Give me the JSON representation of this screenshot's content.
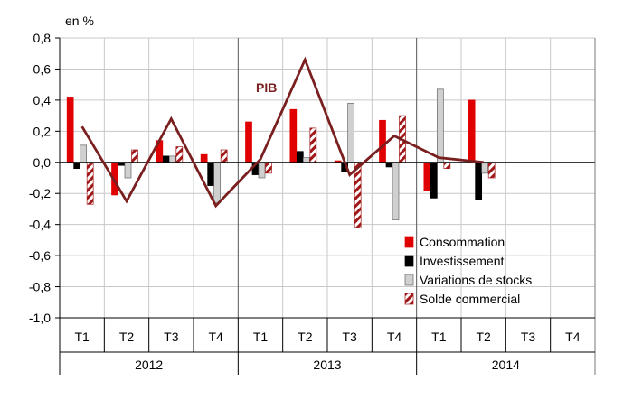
{
  "chart_data": {
    "type": "bar",
    "ylabel": "en %",
    "ylim": [
      -1.0,
      0.8
    ],
    "yticks": [
      "0,8",
      "0,6",
      "0,4",
      "0,2",
      "0,0",
      "-0,2",
      "-0,4",
      "-0,6",
      "-0,8",
      "-1,0"
    ],
    "grid": true,
    "legend_position": "bottom-right",
    "quarters": [
      "T1",
      "T2",
      "T3",
      "T4",
      "T1",
      "T2",
      "T3",
      "T4",
      "T1",
      "T2",
      "T3",
      "T4"
    ],
    "years": [
      "2012",
      "2013",
      "2014"
    ],
    "series": [
      {
        "name": "Consommation",
        "color": "#e00000",
        "values": [
          0.42,
          -0.21,
          0.14,
          0.05,
          0.26,
          0.34,
          0.01,
          0.27,
          -0.18,
          0.4,
          null,
          null
        ]
      },
      {
        "name": "Investissement",
        "color": "#000000",
        "values": [
          -0.04,
          -0.02,
          0.04,
          -0.15,
          -0.08,
          0.07,
          -0.06,
          -0.03,
          -0.23,
          -0.24,
          null,
          null
        ]
      },
      {
        "name": "Variations de stocks",
        "color": "#d0d0d0",
        "values": [
          0.11,
          -0.1,
          0.04,
          -0.26,
          -0.1,
          0.03,
          0.38,
          -0.37,
          0.47,
          -0.07,
          null,
          null
        ]
      },
      {
        "name": "Solde commercial",
        "color": "#a01818",
        "pattern": "hatch",
        "values": [
          -0.27,
          0.08,
          0.1,
          0.08,
          -0.07,
          0.22,
          -0.42,
          0.3,
          -0.04,
          -0.1,
          null,
          null
        ]
      }
    ],
    "line": {
      "name": "PIB",
      "label": "PIB",
      "color": "#7a1f1f",
      "values": [
        0.23,
        -0.25,
        0.28,
        -0.28,
        0.02,
        0.66,
        -0.08,
        0.17,
        0.03,
        0.0,
        null,
        null
      ]
    }
  }
}
